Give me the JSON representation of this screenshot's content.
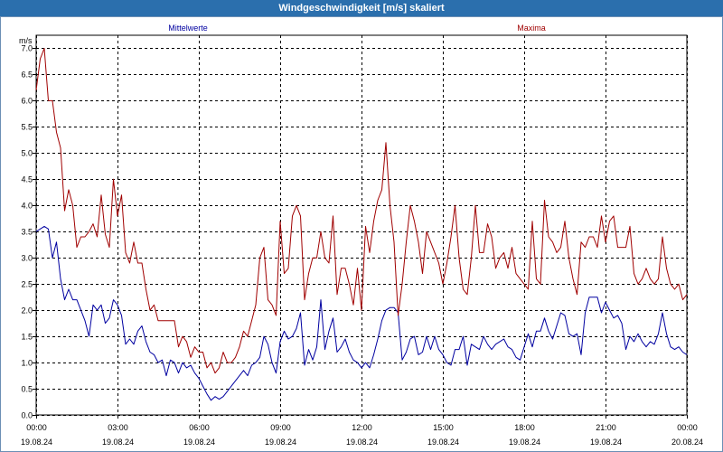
{
  "window": {
    "title": "Windgeschwindigkeit [m/s] skaliert"
  },
  "colors": {
    "titlebar": "#2b6fad",
    "mean": "#0000a0",
    "max": "#a00000",
    "grid": "#000000"
  },
  "chart_data": {
    "type": "line",
    "title": "Windgeschwindigkeit [m/s] skaliert",
    "ylabel": "m/s",
    "ylim": [
      0,
      7.25
    ],
    "xlim": [
      0,
      24
    ],
    "yticks": [
      "0.0",
      "0.5",
      "1.0",
      "1.5",
      "2.0",
      "2.5",
      "3.0",
      "3.5",
      "4.0",
      "4.5",
      "5.0",
      "5.5",
      "6.0",
      "6.5",
      "7.0"
    ],
    "xticks": [
      {
        "time": "00:00",
        "date": "19.08.24"
      },
      {
        "time": "03:00",
        "date": "19.08.24"
      },
      {
        "time": "06:00",
        "date": "19.08.24"
      },
      {
        "time": "09:00",
        "date": "19.08.24"
      },
      {
        "time": "12:00",
        "date": "19.08.24"
      },
      {
        "time": "15:00",
        "date": "19.08.24"
      },
      {
        "time": "18:00",
        "date": "19.08.24"
      },
      {
        "time": "21:00",
        "date": "19.08.24"
      },
      {
        "time": "00:00",
        "date": "20.08.24"
      }
    ],
    "grid": true,
    "legend": "top",
    "series": [
      {
        "name": "Mittelwerte",
        "color": "#0000a0",
        "values": [
          3.5,
          3.55,
          3.6,
          3.55,
          3.0,
          3.3,
          2.6,
          2.2,
          2.4,
          2.2,
          2.2,
          2.0,
          1.8,
          1.5,
          2.1,
          2.0,
          2.1,
          1.75,
          1.85,
          2.2,
          2.1,
          1.9,
          1.35,
          1.45,
          1.35,
          1.6,
          1.7,
          1.4,
          1.2,
          1.15,
          1.0,
          1.05,
          0.75,
          1.05,
          1.0,
          0.8,
          1.0,
          0.9,
          0.95,
          0.8,
          0.7,
          0.55,
          0.4,
          0.28,
          0.35,
          0.3,
          0.35,
          0.45,
          0.55,
          0.65,
          0.75,
          0.85,
          0.75,
          0.95,
          1.0,
          1.1,
          1.5,
          1.35,
          1.0,
          0.8,
          1.4,
          1.6,
          1.45,
          1.5,
          1.65,
          1.95,
          0.95,
          1.25,
          1.05,
          1.3,
          2.2,
          1.25,
          1.6,
          1.85,
          1.2,
          1.3,
          1.45,
          1.2,
          1.05,
          1.0,
          0.9,
          1.0,
          0.9,
          1.15,
          1.45,
          1.8,
          2.0,
          2.05,
          2.05,
          1.95,
          1.05,
          1.2,
          1.45,
          1.5,
          1.15,
          1.2,
          1.5,
          1.25,
          1.5,
          1.25,
          1.15,
          1.0,
          0.95,
          1.25,
          1.25,
          1.5,
          0.95,
          1.35,
          1.3,
          1.25,
          1.5,
          1.35,
          1.25,
          1.35,
          1.4,
          1.45,
          1.3,
          1.25,
          1.1,
          1.05,
          1.3,
          1.55,
          1.3,
          1.6,
          1.6,
          1.85,
          1.6,
          1.45,
          1.7,
          1.95,
          1.9,
          1.55,
          1.5,
          1.55,
          1.15,
          1.95,
          2.25,
          2.25,
          2.25,
          1.95,
          2.15,
          2.0,
          1.85,
          1.9,
          1.75,
          1.25,
          1.5,
          1.4,
          1.55,
          1.4,
          1.3,
          1.4,
          1.35,
          1.55,
          1.95,
          1.55,
          1.3,
          1.25,
          1.3,
          1.2,
          1.15
        ]
      },
      {
        "name": "Maxima",
        "color": "#a00000",
        "values": [
          6.2,
          6.8,
          7.0,
          6.0,
          6.0,
          5.4,
          5.1,
          3.9,
          4.3,
          4.0,
          3.2,
          3.4,
          3.4,
          3.5,
          3.65,
          3.4,
          4.2,
          3.45,
          3.2,
          4.5,
          3.8,
          4.2,
          3.1,
          2.9,
          3.3,
          2.9,
          2.9,
          2.4,
          2.0,
          2.1,
          1.8,
          1.8,
          1.8,
          1.8,
          1.8,
          1.3,
          1.5,
          1.4,
          1.1,
          1.3,
          1.2,
          1.2,
          0.9,
          1.0,
          0.8,
          0.9,
          1.2,
          1.0,
          1.0,
          1.1,
          1.3,
          1.6,
          1.5,
          1.8,
          2.1,
          3.0,
          3.2,
          2.2,
          2.1,
          1.9,
          3.7,
          2.7,
          2.8,
          3.8,
          4.0,
          3.8,
          2.2,
          2.7,
          3.0,
          3.0,
          3.5,
          3.0,
          2.9,
          3.8,
          2.3,
          2.8,
          2.8,
          2.5,
          2.1,
          2.8,
          2.0,
          3.6,
          3.1,
          3.7,
          4.1,
          4.3,
          5.2,
          4.0,
          3.3,
          1.9,
          2.5,
          3.3,
          4.0,
          3.7,
          3.3,
          2.7,
          3.5,
          3.3,
          3.1,
          2.9,
          2.5,
          2.9,
          3.4,
          4.0,
          3.0,
          2.4,
          2.3,
          3.0,
          4.0,
          3.1,
          3.1,
          3.65,
          3.4,
          2.8,
          3.0,
          3.1,
          2.8,
          3.2,
          2.7,
          2.6,
          2.5,
          2.4,
          3.7,
          2.6,
          2.5,
          4.1,
          3.4,
          3.3,
          3.1,
          3.2,
          3.7,
          3.0,
          2.6,
          2.3,
          3.3,
          3.2,
          3.4,
          3.4,
          3.2,
          3.8,
          3.3,
          3.7,
          3.8,
          3.2,
          3.2,
          3.2,
          3.6,
          2.7,
          2.5,
          2.6,
          2.8,
          2.6,
          2.5,
          2.6,
          3.4,
          2.8,
          2.5,
          2.4,
          2.5,
          2.2,
          2.3
        ]
      }
    ]
  }
}
